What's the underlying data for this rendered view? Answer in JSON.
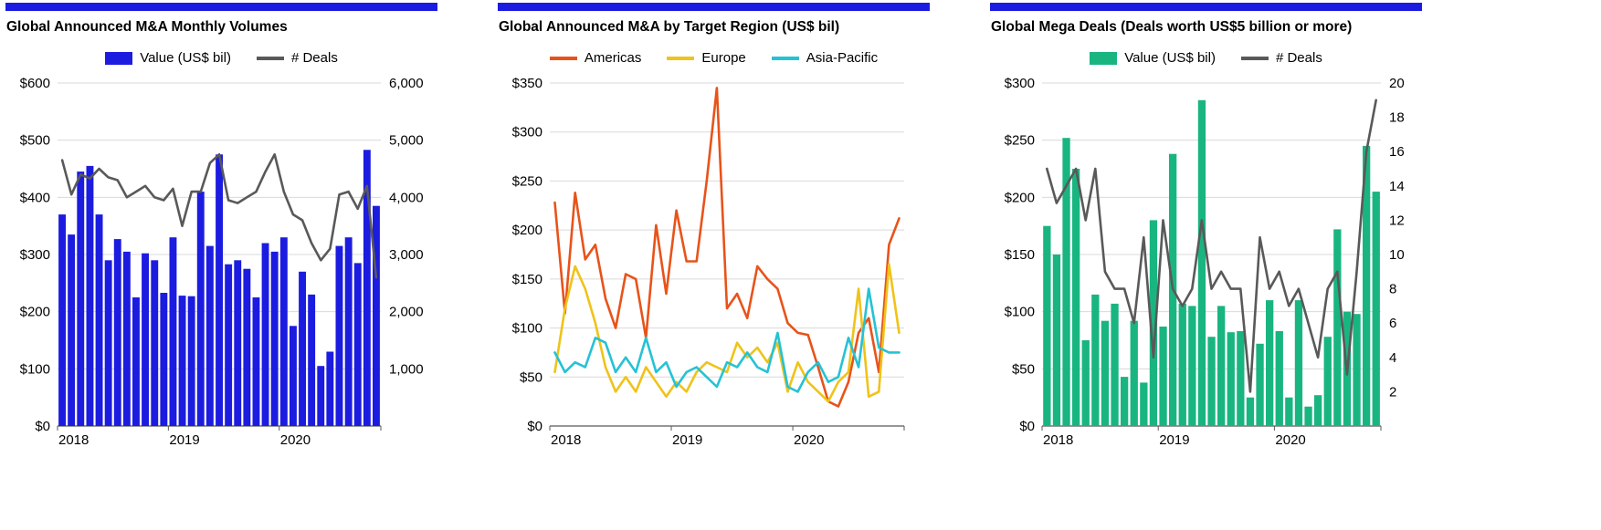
{
  "colors": {
    "accent": "#1c1ce0",
    "gridline": "#d9d9d9",
    "axis": "#595959"
  },
  "x_range_note": "monthly, Jan 2018 - Nov 2020",
  "chart_data": [
    {
      "type": "bar",
      "title": "Global Announced M&A Monthly Volumes",
      "x_labels": [
        {
          "label": "2018",
          "index": 0
        },
        {
          "label": "2019",
          "index": 12
        },
        {
          "label": "2020",
          "index": 24
        }
      ],
      "left_axis": {
        "min": 0,
        "max": 600,
        "tick_labels": [
          "$0",
          "$100",
          "$200",
          "$300",
          "$400",
          "$500",
          "$600"
        ]
      },
      "right_axis": {
        "min": 0,
        "max": 6000,
        "tick_labels": [
          "",
          "1,000",
          "2,000",
          "3,000",
          "4,000",
          "5,000",
          "6,000"
        ]
      },
      "series": [
        {
          "name": "Value (US$ bil)",
          "kind": "bar",
          "axis": "left",
          "color": "#1c1ce0",
          "values": [
            370,
            335,
            445,
            455,
            370,
            290,
            327,
            305,
            225,
            302,
            290,
            233,
            330,
            228,
            227,
            410,
            315,
            475,
            283,
            290,
            275,
            225,
            320,
            305,
            330,
            175,
            270,
            230,
            105,
            130,
            315,
            330,
            285,
            483,
            385
          ]
        },
        {
          "name": "# Deals",
          "kind": "line",
          "axis": "right",
          "color": "#595959",
          "values": [
            4650,
            4050,
            4400,
            4330,
            4500,
            4350,
            4300,
            4000,
            4100,
            4200,
            4000,
            3950,
            4150,
            3500,
            4100,
            4100,
            4600,
            4750,
            3950,
            3900,
            4000,
            4100,
            4450,
            4750,
            4100,
            3700,
            3600,
            3200,
            2900,
            3100,
            4050,
            4100,
            3800,
            4200,
            2600
          ]
        }
      ]
    },
    {
      "type": "line",
      "title": "Global Announced M&A by Target Region (US$ bil)",
      "x_labels": [
        {
          "label": "2018",
          "index": 0
        },
        {
          "label": "2019",
          "index": 12
        },
        {
          "label": "2020",
          "index": 24
        }
      ],
      "left_axis": {
        "min": 0,
        "max": 350,
        "tick_labels": [
          "$0",
          "$50",
          "$100",
          "$150",
          "$200",
          "$250",
          "$300",
          "$350"
        ]
      },
      "series": [
        {
          "name": "Americas",
          "kind": "line",
          "axis": "left",
          "color": "#e8531a",
          "values": [
            228,
            115,
            238,
            170,
            185,
            130,
            100,
            155,
            150,
            90,
            205,
            135,
            220,
            168,
            168,
            250,
            345,
            120,
            135,
            110,
            163,
            150,
            140,
            105,
            95,
            93,
            60,
            25,
            20,
            45,
            95,
            110,
            55,
            185,
            212
          ]
        },
        {
          "name": "Europe",
          "kind": "line",
          "axis": "left",
          "color": "#efc319",
          "values": [
            55,
            120,
            163,
            140,
            105,
            60,
            35,
            50,
            35,
            60,
            45,
            30,
            45,
            35,
            55,
            65,
            60,
            55,
            85,
            70,
            80,
            65,
            85,
            35,
            65,
            45,
            35,
            25,
            45,
            55,
            140,
            30,
            35,
            165,
            95
          ]
        },
        {
          "name": "Asia-Pacific",
          "kind": "line",
          "axis": "left",
          "color": "#25c2d5",
          "values": [
            75,
            55,
            65,
            60,
            90,
            85,
            55,
            70,
            55,
            90,
            55,
            65,
            40,
            55,
            60,
            50,
            40,
            65,
            60,
            75,
            60,
            55,
            95,
            40,
            35,
            55,
            65,
            45,
            50,
            90,
            60,
            140,
            80,
            75,
            75
          ]
        }
      ]
    },
    {
      "type": "bar",
      "title": "Global Mega Deals (Deals worth US$5 billion or more)",
      "x_labels": [
        {
          "label": "2018",
          "index": 0
        },
        {
          "label": "2019",
          "index": 12
        },
        {
          "label": "2020",
          "index": 24
        }
      ],
      "left_axis": {
        "min": 0,
        "max": 300,
        "tick_labels": [
          "$0",
          "$50",
          "$100",
          "$150",
          "$200",
          "$250",
          "$300"
        ]
      },
      "right_axis": {
        "min": 0,
        "max": 20,
        "tick_labels": [
          "",
          "2",
          "4",
          "6",
          "8",
          "10",
          "12",
          "14",
          "16",
          "18",
          "20"
        ]
      },
      "series": [
        {
          "name": "Value (US$ bil)",
          "kind": "bar",
          "axis": "left",
          "color": "#19b580",
          "values": [
            175,
            150,
            252,
            225,
            75,
            115,
            92,
            107,
            43,
            92,
            38,
            180,
            87,
            238,
            107,
            105,
            285,
            78,
            105,
            82,
            83,
            25,
            72,
            110,
            83,
            25,
            110,
            17,
            27,
            78,
            172,
            100,
            98,
            245,
            205
          ]
        },
        {
          "name": "# Deals",
          "kind": "line",
          "axis": "right",
          "color": "#595959",
          "values": [
            15,
            13,
            14,
            15,
            12,
            15,
            9,
            8,
            8,
            6,
            11,
            4,
            12,
            8,
            7,
            8,
            12,
            8,
            9,
            8,
            8,
            2,
            11,
            8,
            9,
            7,
            8,
            6,
            4,
            8,
            9,
            3,
            9,
            16,
            19
          ]
        }
      ]
    }
  ]
}
